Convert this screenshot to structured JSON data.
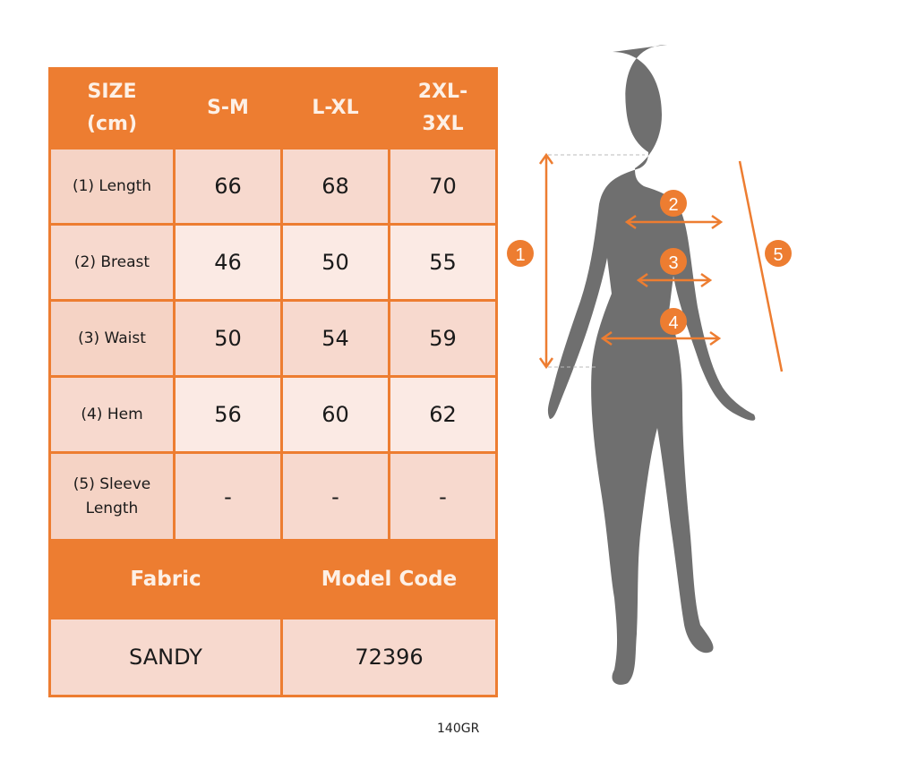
{
  "colors": {
    "accent": "#ed7d31",
    "cell_dark": "#f7d9ce",
    "cell_light": "#fbeae4",
    "silhouette": "#6f6f6f"
  },
  "size_table": {
    "headers": [
      "SIZE\n(cm)",
      "S-M",
      "L-XL",
      "2XL-\n3XL"
    ],
    "rows": [
      {
        "label": "(1) Length",
        "values": [
          "66",
          "68",
          "70"
        ]
      },
      {
        "label": "(2) Breast",
        "values": [
          "46",
          "50",
          "55"
        ]
      },
      {
        "label": "(3) Waist",
        "values": [
          "50",
          "54",
          "59"
        ]
      },
      {
        "label": "(4) Hem",
        "values": [
          "56",
          "60",
          "62"
        ]
      },
      {
        "label": "(5) Sleeve Length",
        "values": [
          "-",
          "-",
          "-"
        ]
      }
    ]
  },
  "info": {
    "fabric_label": "Fabric",
    "model_code_label": "Model Code",
    "fabric": "SANDY",
    "model_code": "72396",
    "weight": "140GR"
  },
  "figure": {
    "markers": [
      "1",
      "2",
      "3",
      "4",
      "5"
    ]
  }
}
